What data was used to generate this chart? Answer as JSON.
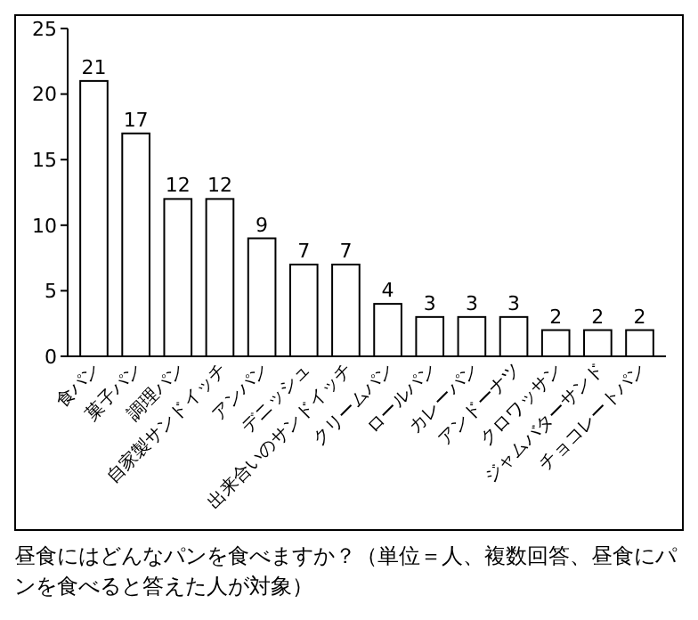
{
  "chart_data": {
    "type": "bar",
    "categories": [
      "食パン",
      "菓子パン",
      "調理パン",
      "自家製サンドイッチ",
      "アンパン",
      "デニッシュ",
      "出来合いのサンドイッチ",
      "クリームパン",
      "ロールパン",
      "カレーパン",
      "アンドーナツ",
      "クロワッサン",
      "ジャムバターサンド",
      "チョコレートパン"
    ],
    "values": [
      21,
      17,
      12,
      12,
      9,
      7,
      7,
      4,
      3,
      3,
      3,
      2,
      2,
      2
    ],
    "color": "#ffffff",
    "ylim": [
      0,
      25
    ],
    "yticks": [
      0,
      5,
      10,
      15,
      20,
      25
    ],
    "data_labels": true,
    "grid": false,
    "annotations": [
      "昼食にはどんなパンを食べますか？（単位＝人、複数回答、昼食にパンを食べると答えた人が対象）"
    ]
  }
}
